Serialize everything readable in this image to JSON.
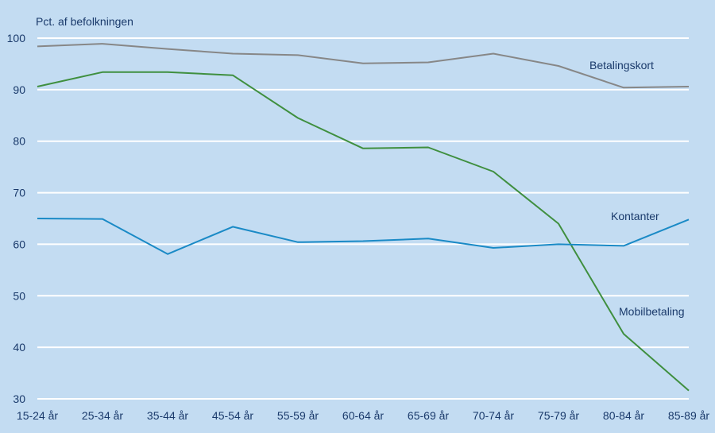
{
  "chart_data": {
    "type": "line",
    "ylabel": "Pct. af befolkningen",
    "ylim": [
      30,
      100
    ],
    "yticks": [
      30,
      40,
      50,
      60,
      70,
      80,
      90,
      100
    ],
    "grid": true,
    "categories": [
      "15-24 år",
      "25-34 år",
      "35-44 år",
      "45-54 år",
      "55-59 år",
      "60-64 år",
      "65-69 år",
      "70-74 år",
      "75-79 år",
      "80-84 år",
      "85-89 år"
    ],
    "series": [
      {
        "name": "Betalingskort",
        "color": "#878787",
        "values": [
          98.4,
          98.9,
          97.9,
          97.0,
          96.7,
          95.1,
          95.3,
          97.0,
          94.6,
          90.4,
          90.6
        ]
      },
      {
        "name": "Mobilbetaling",
        "color": "#3f8f3f",
        "values": [
          90.6,
          93.4,
          93.4,
          92.8,
          84.5,
          78.6,
          78.8,
          74.1,
          64.0,
          42.6,
          31.6
        ]
      },
      {
        "name": "Kontanter",
        "color": "#1a8ac6",
        "values": [
          65.0,
          64.9,
          58.1,
          63.4,
          60.4,
          60.6,
          61.1,
          59.3,
          60.0,
          59.7,
          64.8
        ]
      }
    ]
  }
}
